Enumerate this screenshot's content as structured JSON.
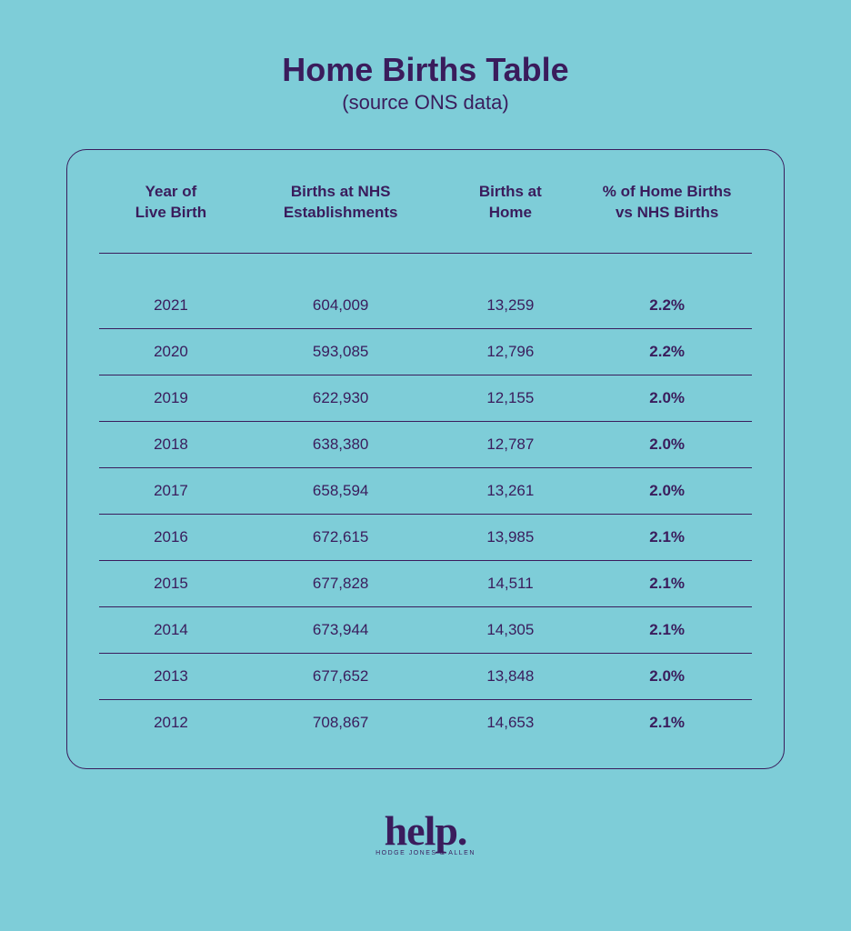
{
  "title": "Home Births Table",
  "subtitle": "(source ONS data)",
  "columns": [
    "Year of\nLive Birth",
    "Births at NHS\nEstablishments",
    "Births at\nHome",
    "% of Home Births\nvs NHS Births"
  ],
  "rows": [
    {
      "year": "2021",
      "nhs": "604,009",
      "home": "13,259",
      "pct": "2.2%"
    },
    {
      "year": "2020",
      "nhs": "593,085",
      "home": "12,796",
      "pct": "2.2%"
    },
    {
      "year": "2019",
      "nhs": "622,930",
      "home": "12,155",
      "pct": "2.0%"
    },
    {
      "year": "2018",
      "nhs": "638,380",
      "home": "12,787",
      "pct": "2.0%"
    },
    {
      "year": "2017",
      "nhs": "658,594",
      "home": "13,261",
      "pct": "2.0%"
    },
    {
      "year": "2016",
      "nhs": "672,615",
      "home": "13,985",
      "pct": "2.1%"
    },
    {
      "year": "2015",
      "nhs": "677,828",
      "home": "14,511",
      "pct": "2.1%"
    },
    {
      "year": "2014",
      "nhs": "673,944",
      "home": "14,305",
      "pct": "2.1%"
    },
    {
      "year": "2013",
      "nhs": "677,652",
      "home": "13,848",
      "pct": "2.0%"
    },
    {
      "year": "2012",
      "nhs": "708,867",
      "home": "14,653",
      "pct": "2.1%"
    }
  ],
  "logo": {
    "main": "help.",
    "sub": "HODGE JONES & ALLEN"
  },
  "colors": {
    "background": "#7ecdd8",
    "text": "#3a1c5c",
    "border": "#3a1c5c"
  }
}
